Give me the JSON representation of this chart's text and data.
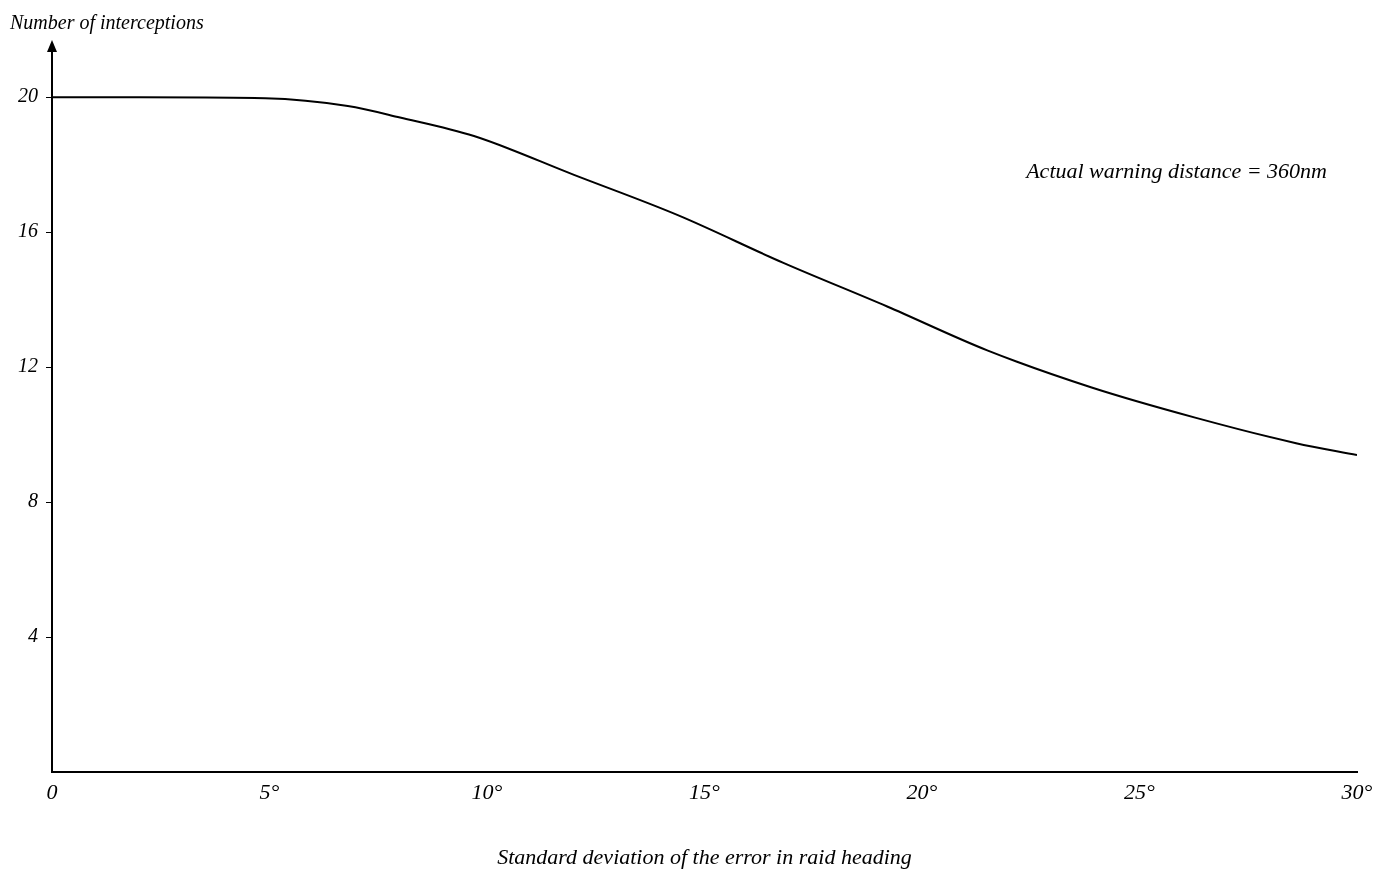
{
  "chart_data": {
    "type": "line",
    "xlabel": "Standard deviation of the error in raid heading",
    "ylabel": "Number of interceptions",
    "annotations": [
      "Actual warning distance = 360nm"
    ],
    "xlim": [
      0,
      30
    ],
    "xticks": [
      0,
      {
        "value": 5,
        "label": "5°"
      },
      {
        "value": 10,
        "label": "10°"
      },
      {
        "value": 15,
        "label": "15°"
      },
      {
        "value": 20,
        "label": "20°"
      },
      {
        "value": 25,
        "label": "25°"
      },
      {
        "value": 30,
        "label": "30°"
      }
    ],
    "ylim": [
      0,
      21.4
    ],
    "yticks": [
      4,
      8,
      12,
      16,
      20
    ],
    "grid": false,
    "legend": false,
    "marker": "none",
    "line_style": "solid",
    "series": [
      {
        "color": "#000000",
        "x": [
          0,
          2,
          4.9,
          6.8,
          8,
          9.7,
          12,
          14.4,
          16.8,
          19.2,
          21.5,
          23.9,
          26.3,
          28.6,
          30
        ],
        "values": [
          20,
          20,
          19.97,
          19.74,
          19.4,
          18.85,
          17.7,
          16.5,
          15.1,
          13.8,
          12.5,
          11.4,
          10.5,
          9.75,
          9.4
        ]
      }
    ]
  }
}
